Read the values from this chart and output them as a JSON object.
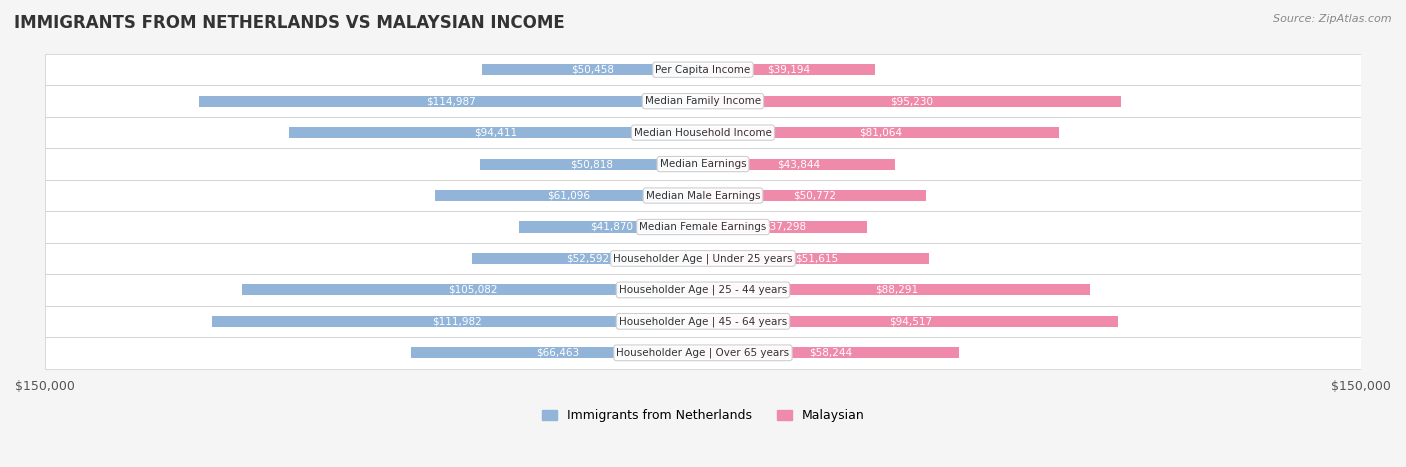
{
  "title": "IMMIGRANTS FROM NETHERLANDS VS MALAYSIAN INCOME",
  "source": "Source: ZipAtlas.com",
  "categories": [
    "Per Capita Income",
    "Median Family Income",
    "Median Household Income",
    "Median Earnings",
    "Median Male Earnings",
    "Median Female Earnings",
    "Householder Age | Under 25 years",
    "Householder Age | 25 - 44 years",
    "Householder Age | 45 - 64 years",
    "Householder Age | Over 65 years"
  ],
  "netherlands_values": [
    50458,
    114987,
    94411,
    50818,
    61096,
    41870,
    52592,
    105082,
    111982,
    66463
  ],
  "malaysian_values": [
    39194,
    95230,
    81064,
    43844,
    50772,
    37298,
    51615,
    88291,
    94517,
    58244
  ],
  "netherlands_color": "#92b4d8",
  "malaysian_color": "#f08aaa",
  "netherlands_label_color_threshold": 60000,
  "malaysian_label_color_threshold": 60000,
  "background_color": "#f5f5f5",
  "row_bg_color": "#ffffff",
  "x_max": 150000,
  "legend_netherlands": "Immigrants from Netherlands",
  "legend_malaysian": "Malaysian",
  "label_inside_color": "#ffffff",
  "label_outside_color": "#555555"
}
